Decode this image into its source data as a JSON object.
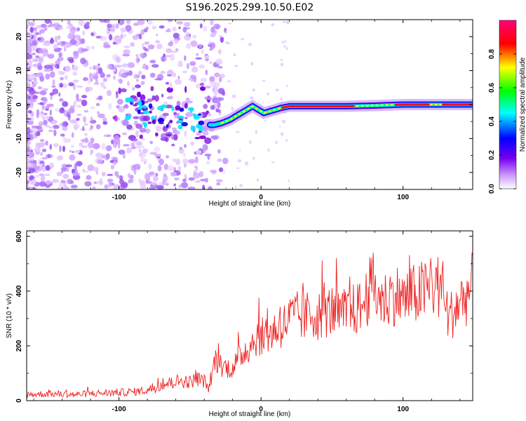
{
  "title": "S196.2025.299.10.50.E02",
  "chart_data": [
    {
      "type": "heatmap",
      "xlabel": "Height of straight line (km)",
      "ylabel": "Frequency (Hz)",
      "xlim": [
        -165,
        149
      ],
      "ylim": [
        -25,
        25
      ],
      "xticks": [
        -100,
        0,
        100
      ],
      "yticks": [
        -20,
        -10,
        0,
        10,
        20
      ],
      "grid": false,
      "ridge": {
        "x": [
          -165,
          -140,
          -120,
          -100,
          -90,
          -80,
          -70,
          -60,
          -50,
          -42,
          -38,
          -33,
          -28,
          -22,
          -16,
          -10,
          -6,
          -2,
          2,
          6,
          10,
          14,
          20,
          40,
          60,
          80,
          100,
          120,
          149
        ],
        "freq": [
          0,
          0,
          0,
          -1,
          -2,
          -3,
          -3,
          -4,
          -4,
          -5,
          -6,
          -6,
          -5.5,
          -4.5,
          -3,
          -1.5,
          -0.5,
          -1.5,
          -2.5,
          -2,
          -1.5,
          -1,
          -0.5,
          -0.5,
          -0.5,
          -0.3,
          0,
          0,
          0
        ]
      },
      "colorbar": {
        "label": "Normalized spectral amplitude",
        "range": [
          0,
          1
        ],
        "ticks": [
          0.0,
          0.2,
          0.4,
          0.6,
          0.8
        ],
        "tick_labels": [
          "0.0",
          "0.2",
          "0.4",
          "0.6",
          "0.8"
        ],
        "colors": [
          "#ffffff",
          "#cc99ff",
          "#7700ee",
          "#0000ff",
          "#00ffff",
          "#00ff00",
          "#ffff00",
          "#ff0000",
          "#ff0077"
        ]
      }
    },
    {
      "type": "line",
      "xlabel": "Height of straight line (km)",
      "ylabel": "SNR (10 * v/v)",
      "xlim": [
        -165,
        149
      ],
      "ylim": [
        0,
        620
      ],
      "xticks": [
        -100,
        0,
        100
      ],
      "yticks": [
        0,
        200,
        400,
        600
      ],
      "grid": false,
      "series": [
        {
          "name": "SNR",
          "color": "#ee2222",
          "x": [
            -165,
            -150,
            -140,
            -130,
            -120,
            -110,
            -100,
            -90,
            -80,
            -75,
            -70,
            -66,
            -60,
            -55,
            -50,
            -45,
            -40,
            -36,
            -34,
            -32,
            -28,
            -24,
            -20,
            -16,
            -12,
            -8,
            -5,
            -2,
            0,
            3,
            6,
            10,
            15,
            20,
            25,
            30,
            35,
            40,
            45,
            50,
            55,
            60,
            65,
            70,
            75,
            78,
            82,
            86,
            90,
            95,
            100,
            105,
            110,
            115,
            120,
            124,
            128,
            132,
            136,
            140,
            144,
            149
          ],
          "y": [
            22,
            25,
            24,
            22,
            26,
            28,
            30,
            32,
            38,
            48,
            58,
            62,
            70,
            72,
            68,
            80,
            72,
            40,
            120,
            150,
            130,
            120,
            120,
            150,
            180,
            200,
            220,
            240,
            225,
            250,
            240,
            260,
            270,
            300,
            310,
            300,
            320,
            310,
            320,
            330,
            310,
            320,
            330,
            340,
            380,
            430,
            390,
            360,
            380,
            390,
            370,
            380,
            390,
            400,
            410,
            420,
            400,
            300,
            330,
            360,
            380,
            420
          ]
        }
      ]
    }
  ]
}
